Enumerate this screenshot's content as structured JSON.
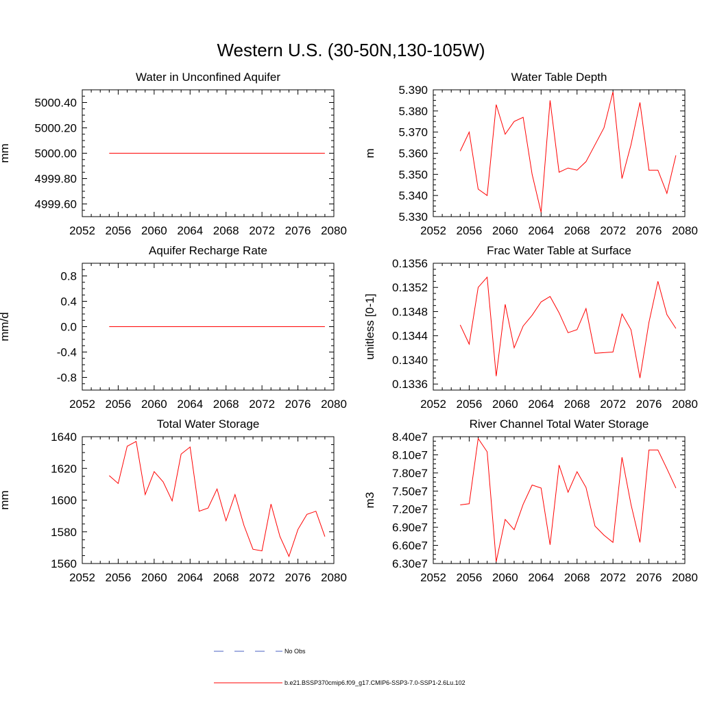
{
  "figure": {
    "title": "Western U.S. (30-50N,130-105W)"
  },
  "colors": {
    "series": "#ff0000",
    "obs": "#4a5fc1",
    "axis": "#000000"
  },
  "legend": {
    "position": "bottom-center",
    "entries": [
      {
        "label": "No Obs",
        "style": "dashed",
        "color": "#4a5fc1"
      },
      {
        "label": "b.e21.BSSP370cmip6.f09_g17.CMIP6-SSP3-7.0-SSP1-2.6Lu.102",
        "style": "solid",
        "color": "#ff0000"
      }
    ]
  },
  "chart_data": [
    {
      "type": "line",
      "title": "Water in Unconfined Aquifer",
      "ylabel": "mm",
      "xlim": [
        2052,
        2080
      ],
      "ylim": [
        4999.5,
        5000.5
      ],
      "x_ticks": [
        "2052",
        "2056",
        "2060",
        "2064",
        "2068",
        "2072",
        "2076",
        "2080"
      ],
      "y_ticks": [
        {
          "v": 4999.6,
          "label": "4999.60"
        },
        {
          "v": 4999.8,
          "label": "4999.80"
        },
        {
          "v": 5000.0,
          "label": "5000.00"
        },
        {
          "v": 5000.2,
          "label": "5000.20"
        },
        {
          "v": 5000.4,
          "label": "5000.40"
        }
      ],
      "x": [
        2055,
        2056,
        2057,
        2058,
        2059,
        2060,
        2061,
        2062,
        2063,
        2064,
        2065,
        2066,
        2067,
        2068,
        2069,
        2070,
        2071,
        2072,
        2073,
        2074,
        2075,
        2076,
        2077,
        2078,
        2079
      ],
      "values": [
        5000,
        5000,
        5000,
        5000,
        5000,
        5000,
        5000,
        5000,
        5000,
        5000,
        5000,
        5000,
        5000,
        5000,
        5000,
        5000,
        5000,
        5000,
        5000,
        5000,
        5000,
        5000,
        5000,
        5000,
        5000
      ]
    },
    {
      "type": "line",
      "title": "Water Table Depth",
      "ylabel": "m",
      "xlim": [
        2052,
        2080
      ],
      "ylim": [
        5.33,
        5.39
      ],
      "x_ticks": [
        "2052",
        "2056",
        "2060",
        "2064",
        "2068",
        "2072",
        "2076",
        "2080"
      ],
      "y_ticks": [
        {
          "v": 5.33,
          "label": "5.330"
        },
        {
          "v": 5.34,
          "label": "5.340"
        },
        {
          "v": 5.35,
          "label": "5.350"
        },
        {
          "v": 5.36,
          "label": "5.360"
        },
        {
          "v": 5.37,
          "label": "5.370"
        },
        {
          "v": 5.38,
          "label": "5.380"
        },
        {
          "v": 5.39,
          "label": "5.390"
        }
      ],
      "x": [
        2055,
        2056,
        2057,
        2058,
        2059,
        2060,
        2061,
        2062,
        2063,
        2064,
        2065,
        2066,
        2067,
        2068,
        2069,
        2070,
        2071,
        2072,
        2073,
        2074,
        2075,
        2076,
        2077,
        2078,
        2079
      ],
      "values": [
        5.361,
        5.37,
        5.343,
        5.34,
        5.383,
        5.369,
        5.375,
        5.377,
        5.35,
        5.332,
        5.385,
        5.351,
        5.353,
        5.352,
        5.356,
        5.364,
        5.372,
        5.389,
        5.348,
        5.364,
        5.384,
        5.352,
        5.352,
        5.341,
        5.359
      ]
    },
    {
      "type": "line",
      "title": "Aquifer Recharge Rate",
      "ylabel": "mm/d",
      "xlim": [
        2052,
        2080
      ],
      "ylim": [
        -1.0,
        1.0
      ],
      "x_ticks": [
        "2052",
        "2056",
        "2060",
        "2064",
        "2068",
        "2072",
        "2076",
        "2080"
      ],
      "y_ticks": [
        {
          "v": -0.8,
          "label": "-0.8"
        },
        {
          "v": -0.4,
          "label": "-0.4"
        },
        {
          "v": 0.0,
          "label": "0.0"
        },
        {
          "v": 0.4,
          "label": "0.4"
        },
        {
          "v": 0.8,
          "label": "0.8"
        }
      ],
      "x": [
        2055,
        2056,
        2057,
        2058,
        2059,
        2060,
        2061,
        2062,
        2063,
        2064,
        2065,
        2066,
        2067,
        2068,
        2069,
        2070,
        2071,
        2072,
        2073,
        2074,
        2075,
        2076,
        2077,
        2078,
        2079
      ],
      "values": [
        0,
        0,
        0,
        0,
        0,
        0,
        0,
        0,
        0,
        0,
        0,
        0,
        0,
        0,
        0,
        0,
        0,
        0,
        0,
        0,
        0,
        0,
        0,
        0,
        0
      ]
    },
    {
      "type": "line",
      "title": "Frac Water Table at Surface",
      "ylabel": "unitless [0-1]",
      "xlim": [
        2052,
        2080
      ],
      "ylim": [
        0.1335,
        0.1356
      ],
      "x_ticks": [
        "2052",
        "2056",
        "2060",
        "2064",
        "2068",
        "2072",
        "2076",
        "2080"
      ],
      "y_ticks": [
        {
          "v": 0.1336,
          "label": "0.1336"
        },
        {
          "v": 0.134,
          "label": "0.1340"
        },
        {
          "v": 0.1344,
          "label": "0.1344"
        },
        {
          "v": 0.1348,
          "label": "0.1348"
        },
        {
          "v": 0.1352,
          "label": "0.1352"
        },
        {
          "v": 0.1356,
          "label": "0.1356"
        }
      ],
      "x": [
        2055,
        2056,
        2057,
        2058,
        2059,
        2060,
        2061,
        2062,
        2063,
        2064,
        2065,
        2066,
        2067,
        2068,
        2069,
        2070,
        2071,
        2072,
        2073,
        2074,
        2075,
        2076,
        2077,
        2078,
        2079
      ],
      "values": [
        0.13458,
        0.13426,
        0.1352,
        0.13537,
        0.13373,
        0.13492,
        0.1342,
        0.13456,
        0.13474,
        0.13496,
        0.13505,
        0.13478,
        0.13445,
        0.1345,
        0.13485,
        0.13411,
        0.13412,
        0.13413,
        0.13476,
        0.1345,
        0.1337,
        0.13462,
        0.1353,
        0.13475,
        0.13452
      ]
    },
    {
      "type": "line",
      "title": "Total Water Storage",
      "ylabel": "mm",
      "xlim": [
        2052,
        2080
      ],
      "ylim": [
        1560,
        1640
      ],
      "x_ticks": [
        "2052",
        "2056",
        "2060",
        "2064",
        "2068",
        "2072",
        "2076",
        "2080"
      ],
      "y_ticks": [
        {
          "v": 1560,
          "label": "1560"
        },
        {
          "v": 1580,
          "label": "1580"
        },
        {
          "v": 1600,
          "label": "1600"
        },
        {
          "v": 1620,
          "label": "1620"
        },
        {
          "v": 1640,
          "label": "1640"
        }
      ],
      "x": [
        2055,
        2056,
        2057,
        2058,
        2059,
        2060,
        2061,
        2062,
        2063,
        2064,
        2065,
        2066,
        2067,
        2068,
        2069,
        2070,
        2071,
        2072,
        2073,
        2074,
        2075,
        2076,
        2077,
        2078,
        2079
      ],
      "values": [
        1615.5,
        1610.5,
        1634,
        1637,
        1603.5,
        1618,
        1611.5,
        1599.5,
        1629,
        1633.5,
        1593,
        1595,
        1607,
        1587,
        1603.5,
        1584,
        1569,
        1568,
        1597.5,
        1577,
        1564.5,
        1581.5,
        1591,
        1593,
        1577
      ]
    },
    {
      "type": "line",
      "title": "River Channel Total Water Storage",
      "ylabel": "m3",
      "xlim": [
        2052,
        2080
      ],
      "ylim": [
        63000000,
        84000000
      ],
      "x_ticks": [
        "2052",
        "2056",
        "2060",
        "2064",
        "2068",
        "2072",
        "2076",
        "2080"
      ],
      "y_ticks": [
        {
          "v": 63000000,
          "label": "6.30e7"
        },
        {
          "v": 66000000,
          "label": "6.60e7"
        },
        {
          "v": 69000000,
          "label": "6.90e7"
        },
        {
          "v": 72000000,
          "label": "7.20e7"
        },
        {
          "v": 75000000,
          "label": "7.50e7"
        },
        {
          "v": 78000000,
          "label": "7.80e7"
        },
        {
          "v": 81000000,
          "label": "8.10e7"
        },
        {
          "v": 84000000,
          "label": "8.40e7"
        }
      ],
      "x": [
        2055,
        2056,
        2057,
        2058,
        2059,
        2060,
        2061,
        2062,
        2063,
        2064,
        2065,
        2066,
        2067,
        2068,
        2069,
        2070,
        2071,
        2072,
        2073,
        2074,
        2075,
        2076,
        2077,
        2078,
        2079
      ],
      "values": [
        72700000,
        72900000,
        83700000,
        81500000,
        63300000,
        70300000,
        68600000,
        72800000,
        76000000,
        75500000,
        66100000,
        79300000,
        74800000,
        78200000,
        75600000,
        69200000,
        67700000,
        66500000,
        80600000,
        72800000,
        66500000,
        81800000,
        81800000,
        78700000,
        75500000
      ]
    }
  ]
}
